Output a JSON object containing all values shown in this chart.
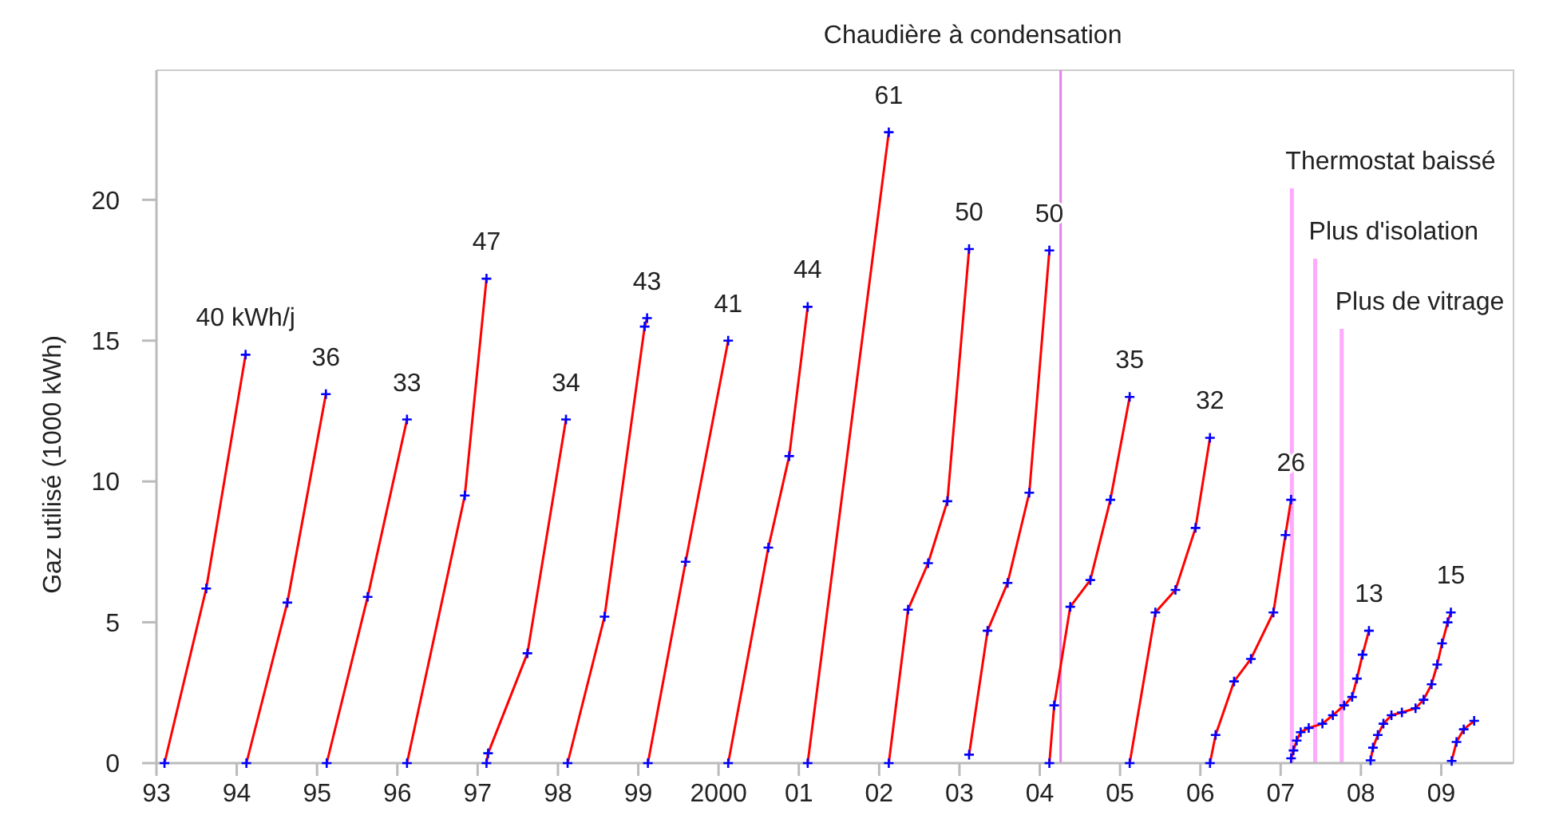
{
  "chart_data": {
    "type": "line",
    "ylabel": "Gaz utilisé (1000 kWh)",
    "xlim": [
      1993,
      2009.9
    ],
    "ylim": [
      0,
      24.6
    ],
    "xticks": [
      {
        "value": 1993,
        "label": "93"
      },
      {
        "value": 1994,
        "label": "94"
      },
      {
        "value": 1995,
        "label": "95"
      },
      {
        "value": 1996,
        "label": "96"
      },
      {
        "value": 1997,
        "label": "97"
      },
      {
        "value": 1998,
        "label": "98"
      },
      {
        "value": 1999,
        "label": "99"
      },
      2000,
      {
        "value": 2001,
        "label": "01"
      },
      {
        "value": 2002,
        "label": "02"
      },
      {
        "value": 2003,
        "label": "03"
      },
      {
        "value": 2004,
        "label": "04"
      },
      {
        "value": 2005,
        "label": "05"
      },
      {
        "value": 2006,
        "label": "06"
      },
      {
        "value": 2007,
        "label": "07"
      },
      {
        "value": 2008,
        "label": "08"
      },
      {
        "value": 2009,
        "label": "09"
      }
    ],
    "yticks": [
      0,
      5,
      10,
      15,
      20
    ],
    "grid": false,
    "marker": "cross",
    "line_style": "solid",
    "series": [
      {
        "color": "#ff0000",
        "x": [
          1993.1,
          1993.62,
          1994.11
        ],
        "values": [
          0,
          6.2,
          14.5
        ]
      },
      {
        "color": "#ff0000",
        "x": [
          1994.12,
          1994.63,
          1995.11
        ],
        "values": [
          0,
          5.7,
          13.1
        ]
      },
      {
        "color": "#ff0000",
        "x": [
          1995.12,
          1995.63,
          1996.12
        ],
        "values": [
          0,
          5.9,
          12.2
        ]
      },
      {
        "color": "#ff0000",
        "x": [
          1996.12,
          1996.84,
          1997.11
        ],
        "values": [
          0,
          9.5,
          17.2
        ]
      },
      {
        "color": "#ff0000",
        "x": [
          1997.11,
          1997.13,
          1997.62,
          1998.1
        ],
        "values": [
          0,
          0.35,
          3.9,
          12.2
        ]
      },
      {
        "color": "#ff0000",
        "x": [
          1998.12,
          1998.58,
          1999.08,
          1999.11
        ],
        "values": [
          0,
          5.2,
          15.5,
          15.8
        ]
      },
      {
        "color": "#ff0000",
        "x": [
          1999.12,
          1999.59,
          2000.12
        ],
        "values": [
          0,
          7.15,
          15
        ]
      },
      {
        "color": "#ff0000",
        "x": [
          2000.12,
          2000.62,
          2000.88,
          2001.11
        ],
        "values": [
          0,
          7.65,
          10.9,
          16.2
        ]
      },
      {
        "color": "#ff0000",
        "x": [
          2001.11,
          2002.12
        ],
        "values": [
          0,
          22.4
        ]
      },
      {
        "color": "#ff0000",
        "x": [
          2002.12,
          2002.36,
          2002.61,
          2002.85,
          2003.12
        ],
        "values": [
          0,
          5.45,
          7.1,
          9.3,
          18.25
        ]
      },
      {
        "color": "#ff0000",
        "x": [
          2003.12,
          2003.35,
          2003.6,
          2003.87,
          2004.12
        ],
        "values": [
          0.3,
          4.7,
          6.4,
          9.6,
          18.2
        ]
      },
      {
        "color": "#ff0000",
        "x": [
          2004.12,
          2004.18,
          2004.38,
          2004.63,
          2004.88,
          2005.12
        ],
        "values": [
          0,
          2.05,
          5.55,
          6.5,
          9.35,
          13
        ]
      },
      {
        "color": "#ff0000",
        "x": [
          2005.12,
          2005.44,
          2005.69,
          2005.94,
          2006.12
        ],
        "values": [
          0,
          5.35,
          6.15,
          8.35,
          11.55
        ]
      },
      {
        "color": "#ff0000",
        "x": [
          2006.12,
          2006.19,
          2006.42,
          2006.63,
          2006.91,
          2007.06,
          2007.13
        ],
        "values": [
          0,
          1,
          2.9,
          3.7,
          5.35,
          8.1,
          9.35
        ]
      },
      {
        "color": "#ff0000",
        "x": [
          2007.13,
          2007.16,
          2007.2,
          2007.25,
          2007.35,
          2007.52,
          2007.65,
          2007.79,
          2007.89,
          2007.95,
          2008.02,
          2008.1
        ],
        "values": [
          0.17,
          0.45,
          0.8,
          1.1,
          1.25,
          1.4,
          1.7,
          2.05,
          2.35,
          3,
          3.85,
          4.7
        ]
      },
      {
        "color": "#ff0000",
        "x": [
          2008.12,
          2008.15,
          2008.21,
          2008.28,
          2008.38,
          2008.51,
          2008.68,
          2008.78,
          2008.88,
          2008.95,
          2009.01,
          2009.08,
          2009.12
        ],
        "values": [
          0.1,
          0.55,
          1,
          1.4,
          1.7,
          1.8,
          1.95,
          2.25,
          2.8,
          3.5,
          4.25,
          5,
          5.35
        ]
      },
      {
        "color": "#ff0000",
        "x": [
          2009.13,
          2009.19,
          2009.28,
          2009.41
        ],
        "values": [
          0.08,
          0.75,
          1.2,
          1.5
        ]
      }
    ],
    "ref_lines": [
      {
        "axis": "x",
        "value": 2004.26,
        "label": "Chaudière à condensation",
        "color": "#e680e6"
      },
      {
        "axis": "x",
        "value": 2007.14,
        "label": "Thermostat baissé",
        "color": "#ffaaff"
      },
      {
        "axis": "x",
        "value": 2007.43,
        "label": "Plus d'isolation",
        "color": "#ffaaff"
      },
      {
        "axis": "x",
        "value": 2007.76,
        "label": "Plus de vitrage",
        "color": "#ffaaff"
      }
    ],
    "annotations": [
      {
        "text": "40 kWh/j",
        "x": 1994.11,
        "y": 14.5
      },
      {
        "text": "36",
        "x": 1995.11,
        "y": 13.1
      },
      {
        "text": "33",
        "x": 1996.12,
        "y": 12.2
      },
      {
        "text": "47",
        "x": 1997.11,
        "y": 17.2
      },
      {
        "text": "34",
        "x": 1998.1,
        "y": 12.2
      },
      {
        "text": "43",
        "x": 1999.11,
        "y": 15.8
      },
      {
        "text": "41",
        "x": 2000.12,
        "y": 15
      },
      {
        "text": "44",
        "x": 2001.11,
        "y": 16.2
      },
      {
        "text": "61",
        "x": 2002.12,
        "y": 22.4
      },
      {
        "text": "50",
        "x": 2003.12,
        "y": 18.25
      },
      {
        "text": "50",
        "x": 2004.12,
        "y": 18.2
      },
      {
        "text": "35",
        "x": 2005.12,
        "y": 13
      },
      {
        "text": "32",
        "x": 2006.12,
        "y": 11.55
      },
      {
        "text": "26",
        "x": 2007.13,
        "y": 9.35
      },
      {
        "text": "13",
        "x": 2008.1,
        "y": 4.7
      },
      {
        "text": "15",
        "x": 2009.12,
        "y": 5.35
      }
    ]
  }
}
